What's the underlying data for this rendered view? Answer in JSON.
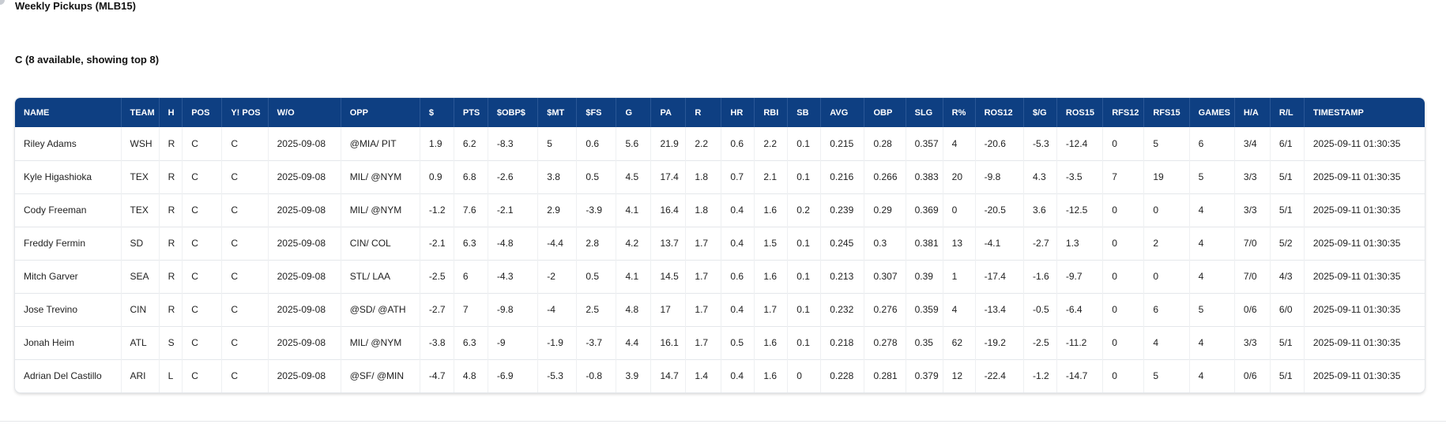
{
  "page": {
    "title": "Weekly Pickups (MLB15)",
    "section_title": "C (8 available, showing top 8)"
  },
  "table": {
    "columns": [
      "NAME",
      "TEAM",
      "H",
      "POS",
      "Y! POS",
      "W/O",
      "OPP",
      "$",
      "PTS",
      "$OBP$",
      "$MT",
      "$FS",
      "G",
      "PA",
      "R",
      "HR",
      "RBI",
      "SB",
      "AVG",
      "OBP",
      "SLG",
      "R%",
      "ROS12",
      "$/G",
      "ROS15",
      "RFS12",
      "RFS15",
      "GAMES",
      "H/A",
      "R/L",
      "TIMESTAMP"
    ],
    "rows": [
      [
        "Riley Adams",
        "WSH",
        "R",
        "C",
        "C",
        "2025-09-08",
        "@MIA/ PIT",
        "1.9",
        "6.2",
        "-8.3",
        "5",
        "0.6",
        "5.6",
        "21.9",
        "2.2",
        "0.6",
        "2.2",
        "0.1",
        "0.215",
        "0.28",
        "0.357",
        "4",
        "-20.6",
        "-5.3",
        "-12.4",
        "0",
        "5",
        "6",
        "3/4",
        "6/1",
        "2025-09-11 01:30:35"
      ],
      [
        "Kyle Higashioka",
        "TEX",
        "R",
        "C",
        "C",
        "2025-09-08",
        "MIL/ @NYM",
        "0.9",
        "6.8",
        "-2.6",
        "3.8",
        "0.5",
        "4.5",
        "17.4",
        "1.8",
        "0.7",
        "2.1",
        "0.1",
        "0.216",
        "0.266",
        "0.383",
        "20",
        "-9.8",
        "4.3",
        "-3.5",
        "7",
        "19",
        "5",
        "3/3",
        "5/1",
        "2025-09-11 01:30:35"
      ],
      [
        "Cody Freeman",
        "TEX",
        "R",
        "C",
        "C",
        "2025-09-08",
        "MIL/ @NYM",
        "-1.2",
        "7.6",
        "-2.1",
        "2.9",
        "-3.9",
        "4.1",
        "16.4",
        "1.8",
        "0.4",
        "1.6",
        "0.2",
        "0.239",
        "0.29",
        "0.369",
        "0",
        "-20.5",
        "3.6",
        "-12.5",
        "0",
        "0",
        "4",
        "3/3",
        "5/1",
        "2025-09-11 01:30:35"
      ],
      [
        "Freddy Fermin",
        "SD",
        "R",
        "C",
        "C",
        "2025-09-08",
        "CIN/ COL",
        "-2.1",
        "6.3",
        "-4.8",
        "-4.4",
        "2.8",
        "4.2",
        "13.7",
        "1.7",
        "0.4",
        "1.5",
        "0.1",
        "0.245",
        "0.3",
        "0.381",
        "13",
        "-4.1",
        "-2.7",
        "1.3",
        "0",
        "2",
        "4",
        "7/0",
        "5/2",
        "2025-09-11 01:30:35"
      ],
      [
        "Mitch Garver",
        "SEA",
        "R",
        "C",
        "C",
        "2025-09-08",
        "STL/ LAA",
        "-2.5",
        "6",
        "-4.3",
        "-2",
        "0.5",
        "4.1",
        "14.5",
        "1.7",
        "0.6",
        "1.6",
        "0.1",
        "0.213",
        "0.307",
        "0.39",
        "1",
        "-17.4",
        "-1.6",
        "-9.7",
        "0",
        "0",
        "4",
        "7/0",
        "4/3",
        "2025-09-11 01:30:35"
      ],
      [
        "Jose Trevino",
        "CIN",
        "R",
        "C",
        "C",
        "2025-09-08",
        "@SD/ @ATH",
        "-2.7",
        "7",
        "-9.8",
        "-4",
        "2.5",
        "4.8",
        "17",
        "1.7",
        "0.4",
        "1.7",
        "0.1",
        "0.232",
        "0.276",
        "0.359",
        "4",
        "-13.4",
        "-0.5",
        "-6.4",
        "0",
        "6",
        "5",
        "0/6",
        "6/0",
        "2025-09-11 01:30:35"
      ],
      [
        "Jonah Heim",
        "ATL",
        "S",
        "C",
        "C",
        "2025-09-08",
        "MIL/ @NYM",
        "-3.8",
        "6.3",
        "-9",
        "-1.9",
        "-3.7",
        "4.4",
        "16.1",
        "1.7",
        "0.5",
        "1.6",
        "0.1",
        "0.218",
        "0.278",
        "0.35",
        "62",
        "-19.2",
        "-2.5",
        "-11.2",
        "0",
        "4",
        "4",
        "3/3",
        "5/1",
        "2025-09-11 01:30:35"
      ],
      [
        "Adrian Del Castillo",
        "ARI",
        "L",
        "C",
        "C",
        "2025-09-08",
        "@SF/ @MIN",
        "-4.7",
        "4.8",
        "-6.9",
        "-5.3",
        "-0.8",
        "3.9",
        "14.7",
        "1.4",
        "0.4",
        "1.6",
        "0",
        "0.228",
        "0.281",
        "0.379",
        "12",
        "-22.4",
        "-1.2",
        "-14.7",
        "0",
        "5",
        "4",
        "0/6",
        "5/1",
        "2025-09-11 01:30:35"
      ]
    ]
  },
  "colors": {
    "header_bg": "#0e3f82",
    "header_text": "#ffffff"
  }
}
